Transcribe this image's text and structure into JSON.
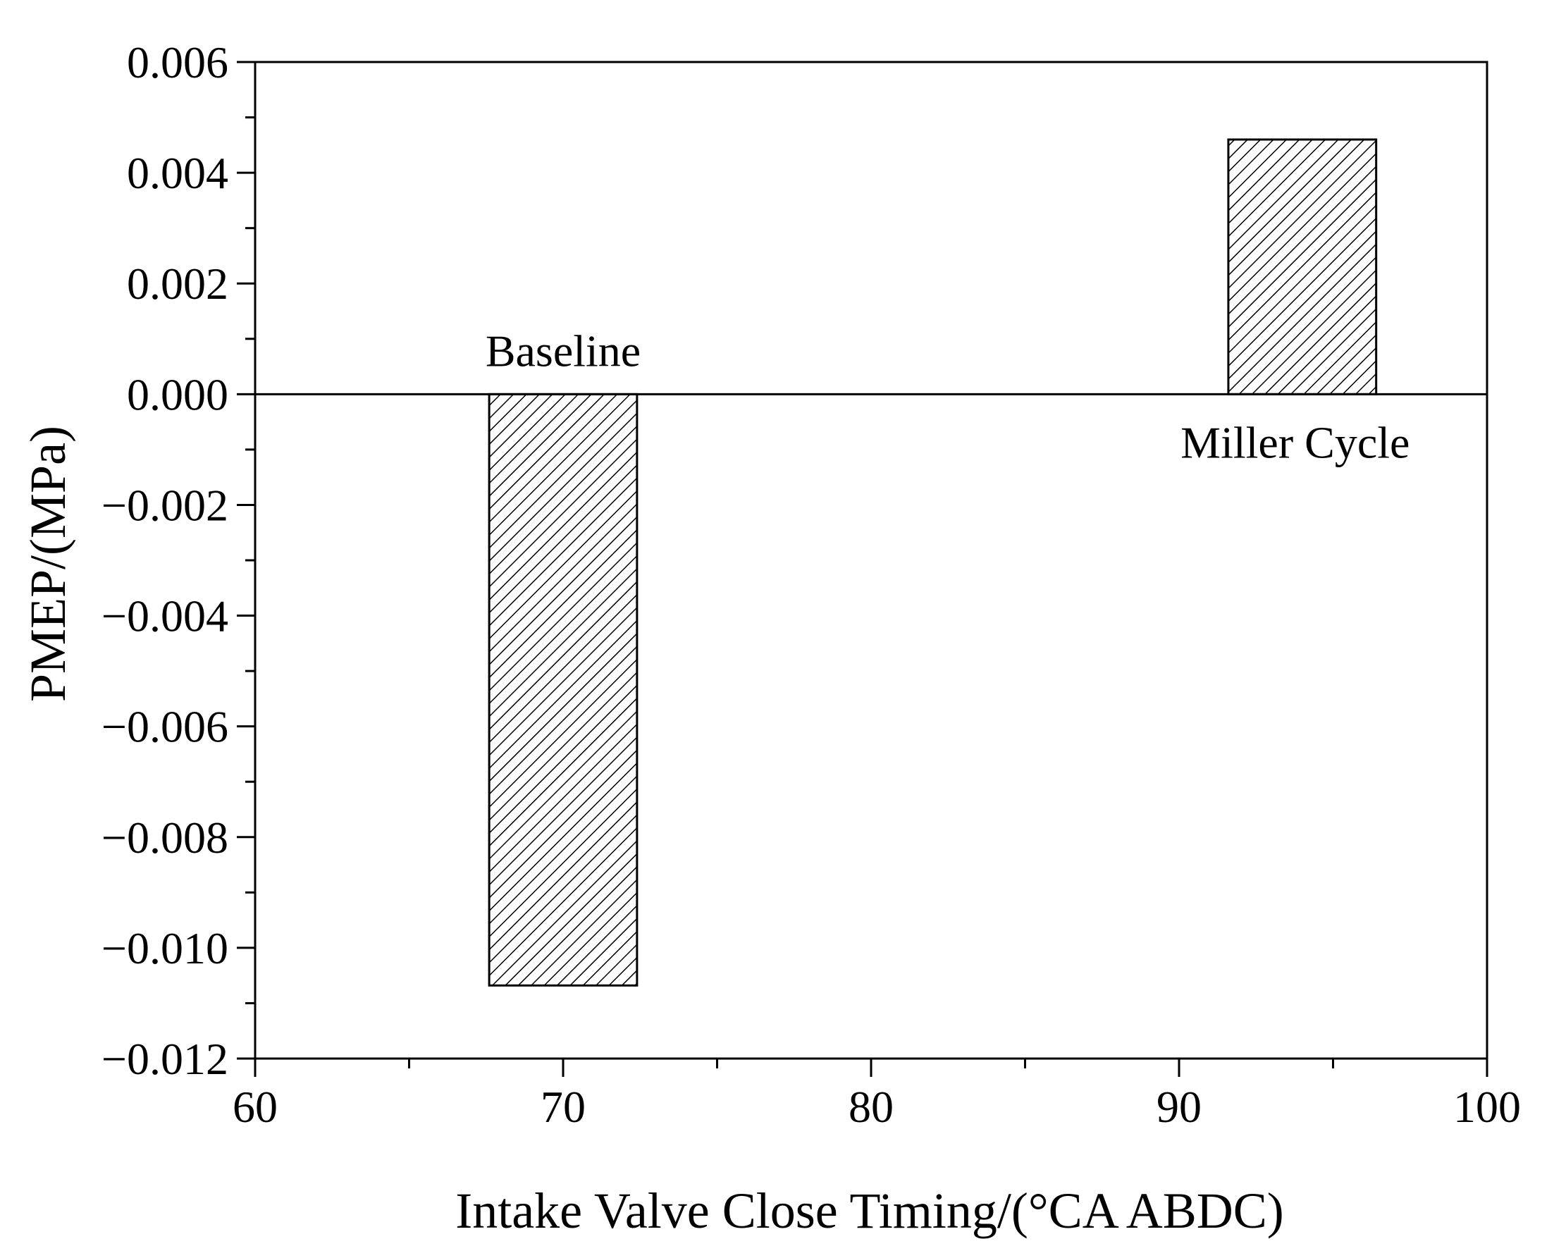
{
  "chart_data": {
    "type": "bar",
    "title": "",
    "xlabel": "Intake Valve Close Timing/(°CA ABDC)",
    "ylabel": "PMEP/(MPa)",
    "xlim": [
      60,
      100
    ],
    "ylim": [
      -0.012,
      0.006
    ],
    "xticks": [
      60,
      70,
      80,
      90,
      100
    ],
    "xtick_labels": [
      "60",
      "70",
      "80",
      "90",
      "100"
    ],
    "yticks": [
      0.006,
      0.004,
      0.002,
      0.0,
      -0.002,
      -0.004,
      -0.006,
      -0.008,
      -0.01,
      -0.012
    ],
    "ytick_labels": [
      "0.006",
      "0.004",
      "0.002",
      "0.000",
      "−0.002",
      "−0.004",
      "−0.006",
      "−0.008",
      "−0.010",
      "−0.012"
    ],
    "grid": false,
    "bar_pattern": "diagonal-hatch",
    "bar_color": "#000000",
    "bars": [
      {
        "label": "Baseline",
        "x": 70,
        "width": 4.8,
        "value": -0.01068,
        "label_position": "above-baseline"
      },
      {
        "label": "Miller Cycle",
        "x": 94,
        "width": 4.8,
        "value": 0.0046,
        "label_position": "below-baseline"
      }
    ]
  }
}
